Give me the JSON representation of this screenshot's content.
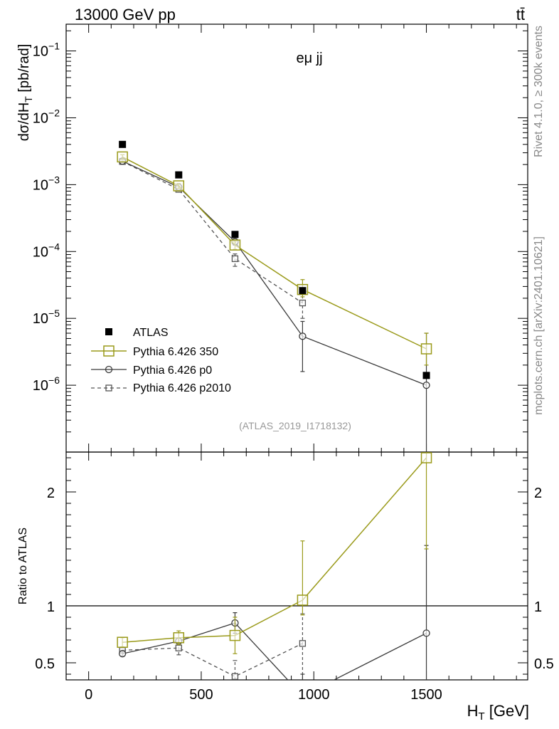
{
  "header": {
    "left": "13000 GeV pp",
    "right": "tt̄"
  },
  "side_labels": {
    "rivet": "Rivet 4.1.0, ≥ 300k events",
    "mcplots": "mcplots.cern.ch [arXiv:2401.10621]"
  },
  "colors": {
    "atlas": "#000000",
    "p350": "#9a9a1a",
    "p0": "#3a3a3a",
    "p2010": "#555555"
  },
  "chart_data": [
    {
      "type": "scatter",
      "title": "eμ jj",
      "analysis": "(ATLAS_2019_I1718132)",
      "xlabel": "",
      "ylabel": "dσ/dH_T [pb/rad]",
      "yscale": "log",
      "xlim": [
        -100,
        1950
      ],
      "ylim_exp": [
        -7.0,
        -0.6
      ],
      "ytick_labels": [
        "10^-6",
        "10^-5",
        "10^-4",
        "10^-3",
        "10^-2",
        "10^-1"
      ],
      "legend": [
        "ATLAS",
        "Pythia 6.426 350",
        "Pythia 6.426 p0",
        "Pythia 6.426 p2010"
      ],
      "x": [
        150,
        400,
        650,
        950,
        1500
      ],
      "series": [
        {
          "name": "ATLAS",
          "values": [
            0.004,
            0.0014,
            0.00018,
            2.6e-05,
            1.4e-06
          ]
        },
        {
          "name": "Pythia 6.426 350",
          "values": [
            0.0026,
            0.00096,
            0.000125,
            2.7e-05,
            3.5e-06
          ],
          "err_lo": [
            0.0024,
            0.00088,
            0.000108,
            2.1e-05,
            2e-06
          ],
          "err_hi": [
            0.0028,
            0.00104,
            0.000142,
            3.8e-05,
            6e-06
          ]
        },
        {
          "name": "Pythia 6.426 p0",
          "values": [
            0.00225,
            0.00092,
            0.00014,
            5.4e-06,
            1e-06
          ],
          "err_lo": [
            0.00215,
            0.00088,
            0.000125,
            1.6e-06,
            1e-08
          ],
          "err_hi": [
            0.00235,
            0.00096,
            0.000155,
            9e-06,
            6e-06
          ]
        },
        {
          "name": "Pythia 6.426 p2010",
          "values": [
            0.00222,
            0.00085,
            7.8e-05,
            1.7e-05,
            null
          ],
          "err_lo": [
            0.00212,
            0.0008,
            6e-05,
            1e-05,
            null
          ],
          "err_hi": [
            0.00232,
            0.0009,
            9.2e-05,
            2.5e-05,
            null
          ]
        }
      ]
    },
    {
      "type": "line",
      "title": "",
      "xlabel": "H_T [GeV]",
      "ylabel": "Ratio to ATLAS",
      "xlim": [
        -100,
        1950
      ],
      "ylim": [
        0.35,
        2.35
      ],
      "x": [
        150,
        400,
        650,
        950,
        1500
      ],
      "xtick_labels": [
        "0",
        "500",
        "1000",
        "1500"
      ],
      "ytick_labels": [
        "0.5",
        "1",
        "2"
      ],
      "reference_line": 1,
      "series": [
        {
          "name": "Pythia 6.426 350",
          "values": [
            0.68,
            0.72,
            0.74,
            1.05,
            2.3
          ],
          "err_lo": [
            0.64,
            0.66,
            0.58,
            0.92,
            1.5
          ],
          "err_hi": [
            0.72,
            0.78,
            0.9,
            1.57,
            2.4
          ]
        },
        {
          "name": "Pythia 6.426 p0",
          "values": [
            0.58,
            0.69,
            0.85,
            0.21,
            0.76
          ],
          "err_lo": [
            0.56,
            0.67,
            0.76,
            0.05,
            0.0
          ],
          "err_hi": [
            0.6,
            0.71,
            0.94,
            0.4,
            1.53
          ]
        },
        {
          "name": "Pythia 6.426 p2010",
          "values": [
            0.61,
            0.63,
            0.38,
            0.67,
            null
          ],
          "err_lo": [
            0.59,
            0.57,
            0.3,
            0.35,
            null
          ],
          "err_hi": [
            0.63,
            0.69,
            0.52,
            0.93,
            null
          ]
        }
      ]
    }
  ]
}
